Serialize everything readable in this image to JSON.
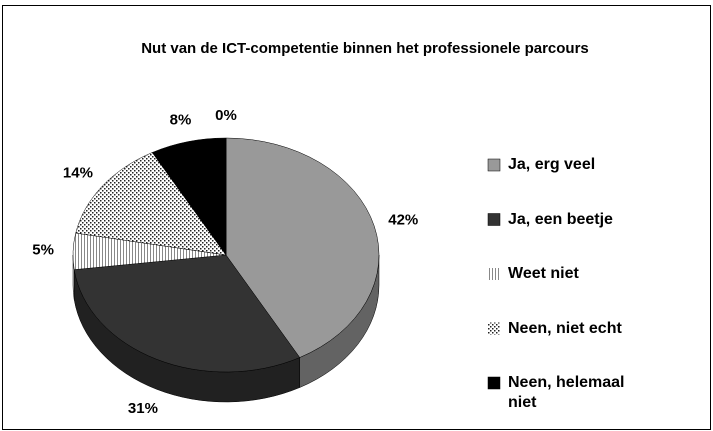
{
  "chart_data": {
    "type": "pie",
    "title": "Nut van de ICT-competentie binnen het professionele parcours",
    "categories": [
      "Ja, erg veel",
      "Ja, een beetje",
      "Weet niet",
      "Neen, niet echt",
      "Neen, helemaal niet",
      null
    ],
    "values": [
      42,
      31,
      5,
      14,
      8,
      0
    ],
    "value_labels": [
      "42%",
      "31%",
      "5%",
      "14%",
      "8%",
      "0%"
    ],
    "colors": [
      "#999999",
      "#333333",
      "#ffffff",
      "#ffffff",
      "#000000",
      "#ffffff"
    ],
    "patterns": [
      null,
      null,
      "vertical-lines",
      "dots",
      null,
      null
    ],
    "legend": "right"
  }
}
